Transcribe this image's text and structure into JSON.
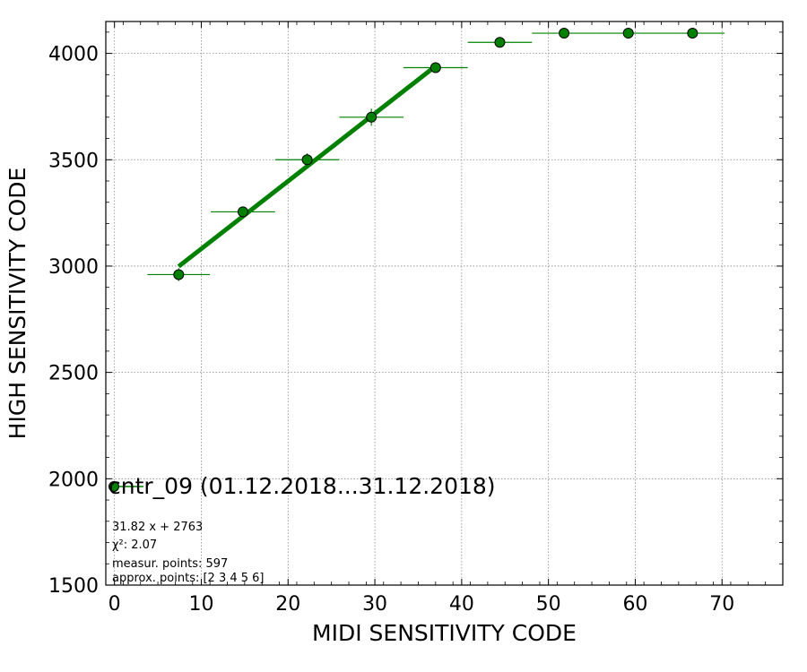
{
  "chart_data": {
    "type": "scatter",
    "xlabel": "MIDI SENSITIVITY CODE",
    "ylabel": "HIGH SENSITIVITY CODE",
    "xlim": [
      -1,
      77
    ],
    "ylim": [
      1500,
      4150
    ],
    "x_ticks": [
      0,
      10,
      20,
      30,
      40,
      50,
      60,
      70
    ],
    "y_ticks": [
      1500,
      2000,
      2500,
      3000,
      3500,
      4000
    ],
    "grid": true,
    "legend_position": "lower-left",
    "series": [
      {
        "name": "cntr_09 (01.12.2018...31.12.2018)",
        "color": "#008000",
        "marker": "circle",
        "points": [
          {
            "x": 7.4,
            "y": 2960,
            "xerr": 3.6,
            "yerr": 30
          },
          {
            "x": 14.8,
            "y": 3255,
            "xerr": 3.7,
            "yerr": 25
          },
          {
            "x": 22.2,
            "y": 3500,
            "xerr": 3.7,
            "yerr": 30
          },
          {
            "x": 29.6,
            "y": 3700,
            "xerr": 3.7,
            "yerr": 40
          },
          {
            "x": 37.0,
            "y": 3933,
            "xerr": 3.7,
            "yerr": 15
          },
          {
            "x": 44.4,
            "y": 4052,
            "xerr": 3.7,
            "yerr": 5
          },
          {
            "x": 51.8,
            "y": 4095,
            "xerr": 3.7,
            "yerr": 0
          },
          {
            "x": 59.2,
            "y": 4095,
            "xerr": 3.7,
            "yerr": 0
          },
          {
            "x": 66.6,
            "y": 4095,
            "xerr": 3.7,
            "yerr": 0
          }
        ]
      }
    ],
    "fit": {
      "slope": 31.82,
      "intercept": 2763,
      "x_range": [
        7.4,
        37.0
      ],
      "color": "#008000"
    },
    "annotations": [
      "31.82 x + 2763",
      "χ²: 2.07",
      "measur. points: 597",
      "approx. points: [2 3 4 5 6]"
    ]
  }
}
